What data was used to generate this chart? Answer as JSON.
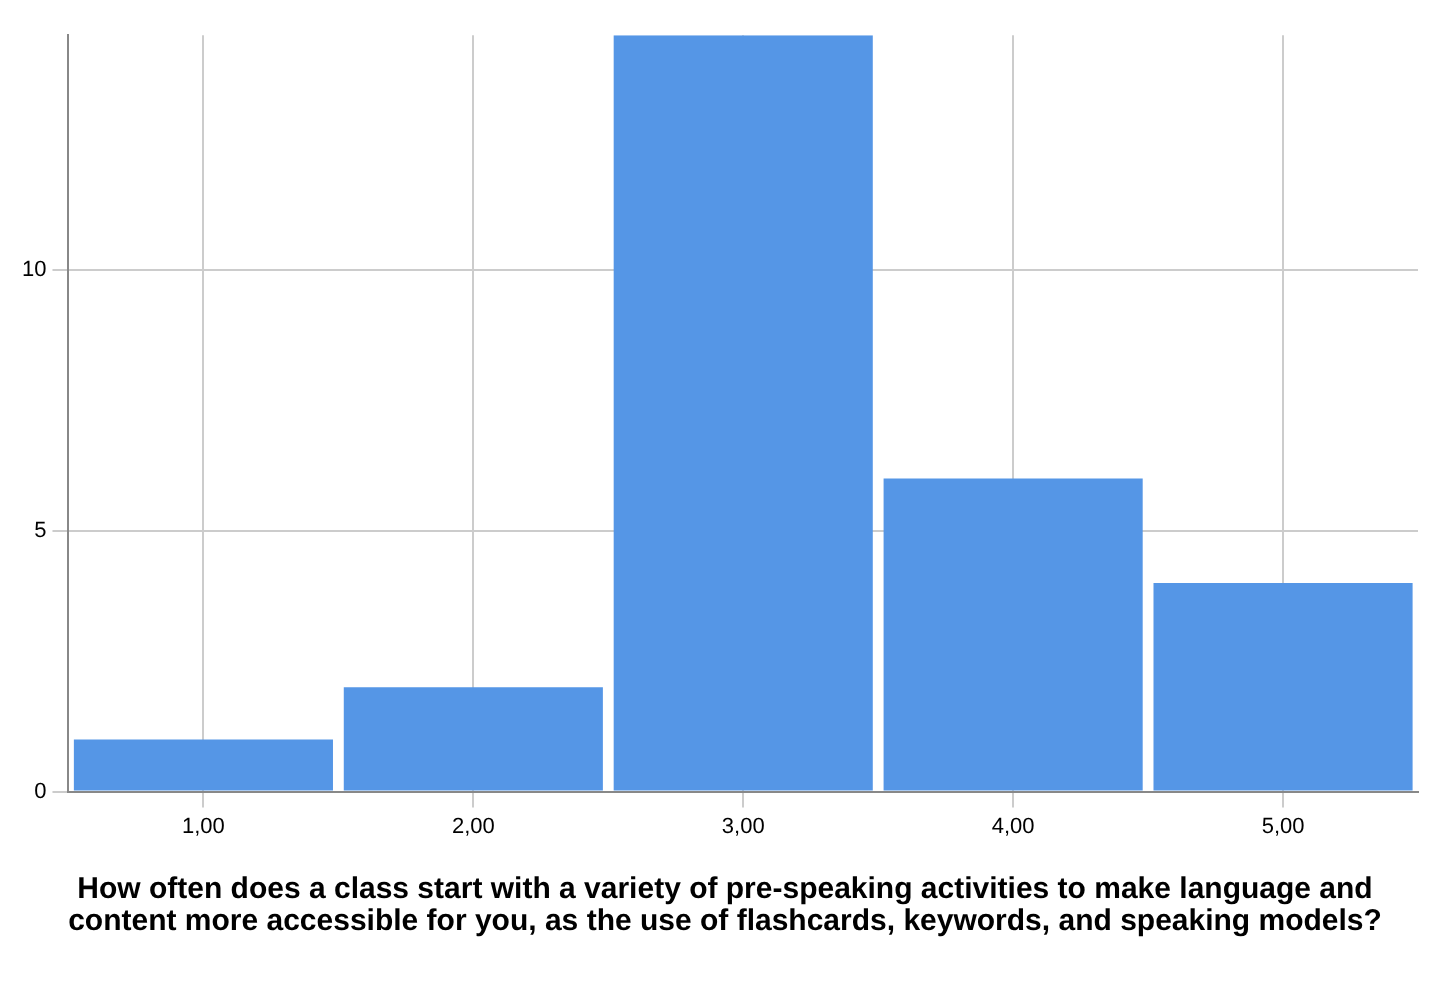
{
  "chart_data": {
    "type": "bar",
    "xlabel": "How often does a class start with a variety of pre-speaking activities to make language and content more accessible for you, as the use of flashcards, keywords, and speaking models?",
    "categories": [
      "1,00",
      "2,00",
      "3,00",
      "4,00",
      "5,00"
    ],
    "values": [
      1,
      2,
      14.5,
      6,
      4
    ],
    "color": "#5596e6",
    "ylim": [
      0,
      14.5
    ],
    "yticks": [
      0,
      5,
      10
    ],
    "grid": true
  }
}
